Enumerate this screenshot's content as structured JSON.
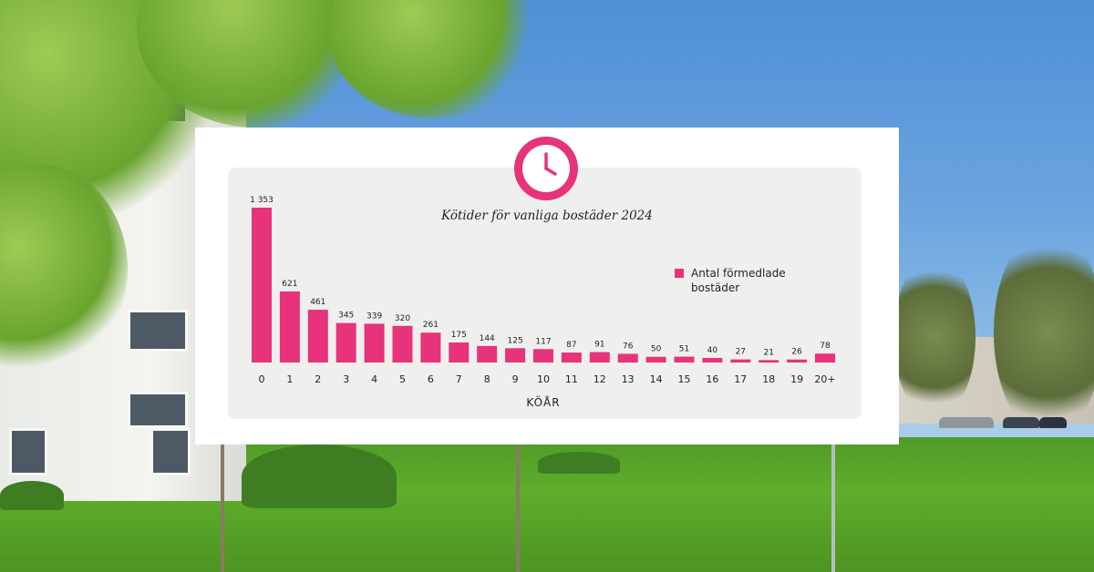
{
  "colors": {
    "bar": "#e6337a",
    "panel": "#efefee",
    "card": "#ffffff",
    "text": "#222222"
  },
  "icon": "clock-icon",
  "chart_data": {
    "type": "bar",
    "title": "Kötider för vanliga bostäder 2024",
    "xlabel": "KÖÅR",
    "ylabel": "",
    "legend": "top-right",
    "ylim": [
      0,
      1353
    ],
    "categories": [
      "0",
      "1",
      "2",
      "3",
      "4",
      "5",
      "6",
      "7",
      "8",
      "9",
      "10",
      "11",
      "12",
      "13",
      "14",
      "15",
      "16",
      "17",
      "18",
      "19",
      "20+"
    ],
    "series": [
      {
        "name": "Antal förmedlade bostäder",
        "values": [
          1353,
          621,
          461,
          345,
          339,
          320,
          261,
          175,
          144,
          125,
          117,
          87,
          91,
          76,
          50,
          51,
          40,
          27,
          21,
          26,
          78
        ],
        "labels": [
          "1 353",
          "621",
          "461",
          "345",
          "339",
          "320",
          "261",
          "175",
          "144",
          "125",
          "117",
          "87",
          "91",
          "76",
          "50",
          "51",
          "40",
          "27",
          "21",
          "26",
          "78"
        ]
      }
    ]
  }
}
